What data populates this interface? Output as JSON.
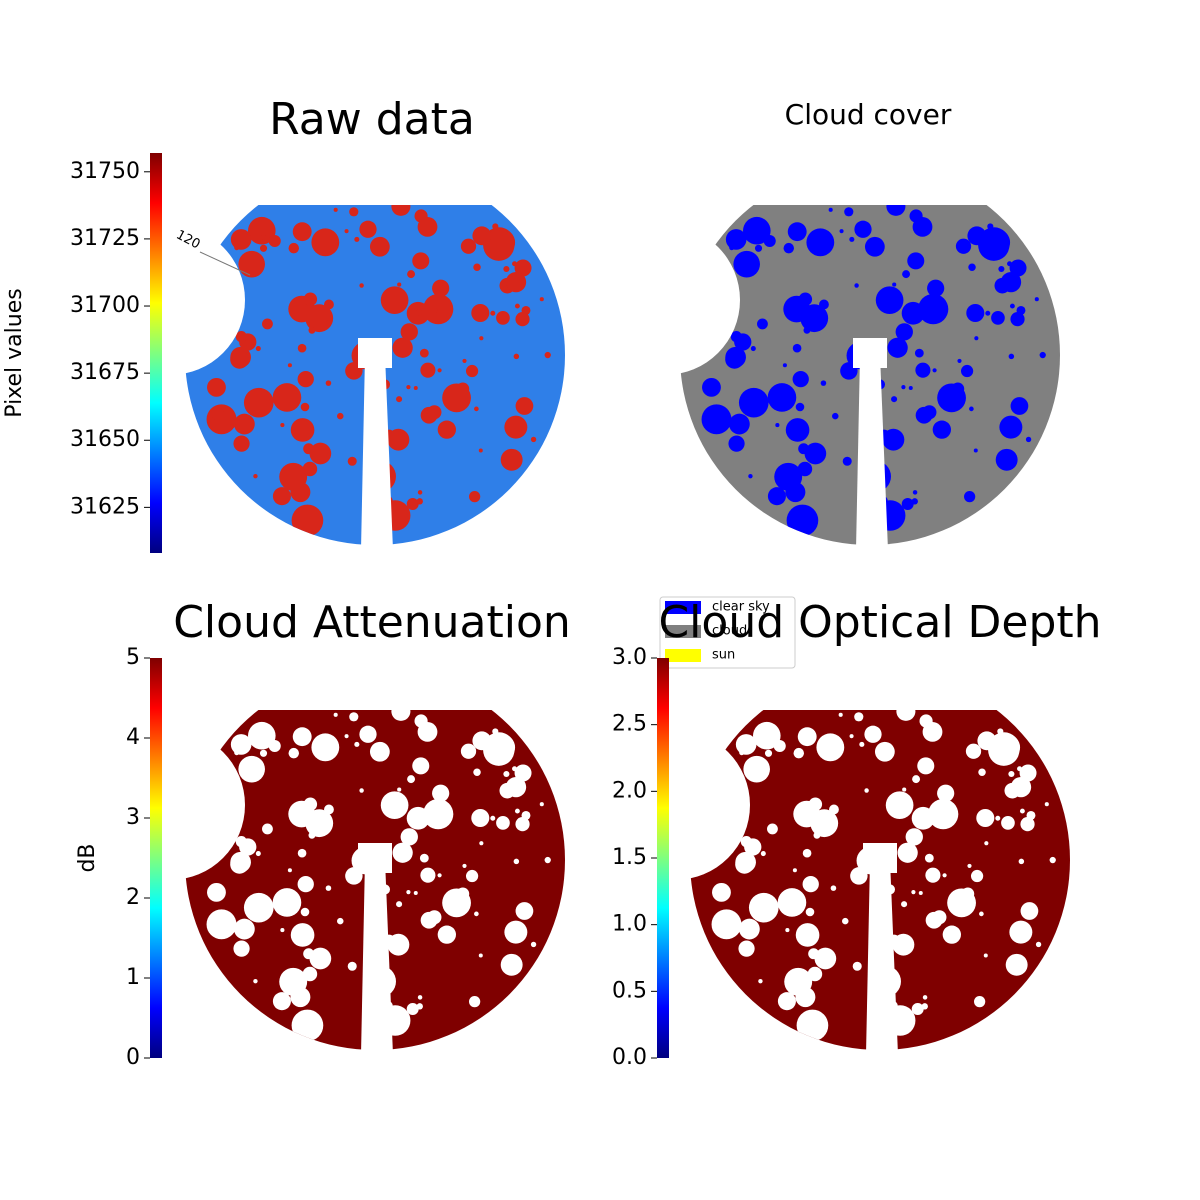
{
  "chart_data": [
    {
      "type": "image",
      "title": "Raw data",
      "colormap": "jet",
      "colorbar_label": "Pixel values",
      "ylim": [
        31608,
        31757
      ],
      "yticks": [
        31625,
        31650,
        31675,
        31700,
        31725,
        31750
      ],
      "annotations": [
        "120"
      ]
    },
    {
      "type": "image",
      "title": "Cloud cover",
      "legend": [
        {
          "name": "clear sky",
          "color": "#0000ff"
        },
        {
          "name": "cloud",
          "color": "#808080"
        },
        {
          "name": "sun",
          "color": "#ffff00"
        }
      ]
    },
    {
      "type": "image",
      "title": "Cloud Attenuation",
      "colormap": "jet",
      "colorbar_label": "dB",
      "ylim": [
        0,
        5
      ],
      "yticks": [
        0,
        1,
        2,
        3,
        4,
        5
      ]
    },
    {
      "type": "image",
      "title": "Cloud Optical Depth",
      "colormap": "jet",
      "ylim": [
        0,
        3
      ],
      "yticks": [
        {
          "value": 0,
          "label": "0.0"
        },
        0.5,
        {
          "value": 1,
          "label": "1.0"
        },
        1.5,
        {
          "value": 2,
          "label": "2.0"
        },
        2.5,
        {
          "value": 3,
          "label": "3.0"
        }
      ]
    }
  ]
}
